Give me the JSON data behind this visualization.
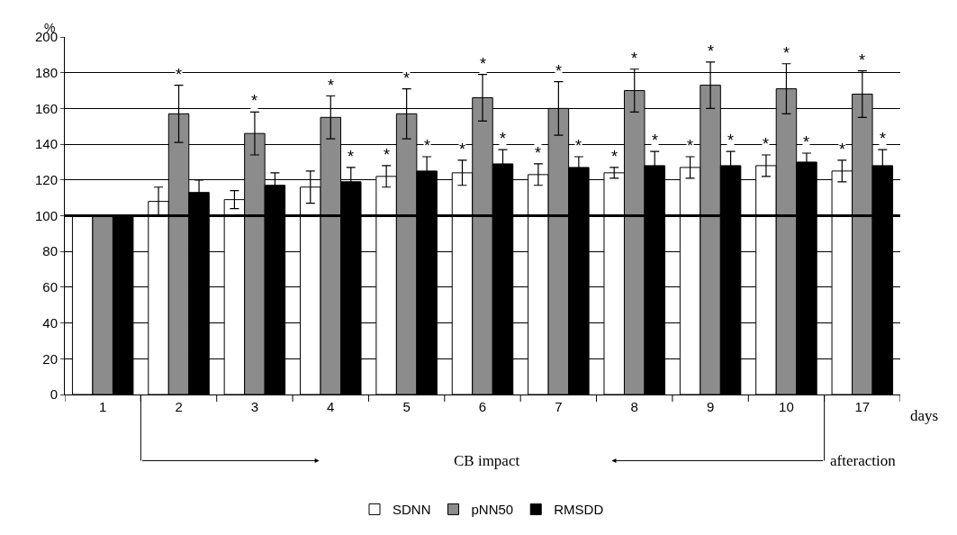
{
  "chart_data": {
    "type": "bar",
    "categories": [
      "1",
      "2",
      "3",
      "4",
      "5",
      "6",
      "7",
      "8",
      "9",
      "10",
      "17"
    ],
    "series": [
      {
        "name": "SDNN",
        "color": "#ffffff",
        "values": [
          100,
          108,
          109,
          116,
          122,
          124,
          123,
          124,
          127,
          128,
          125
        ],
        "errors": [
          null,
          8,
          5,
          9,
          6,
          7,
          6,
          3,
          6,
          6,
          6
        ],
        "value_labels": [
          null,
          null,
          null,
          null,
          "*",
          "*",
          "*",
          "*",
          "*",
          "*",
          "*"
        ]
      },
      {
        "name": "pNN50",
        "color": "#8c8c8c",
        "values": [
          100,
          157,
          146,
          155,
          157,
          166,
          160,
          170,
          173,
          171,
          168
        ],
        "errors": [
          null,
          16,
          12,
          12,
          14,
          13,
          15,
          12,
          13,
          14,
          13
        ],
        "value_labels": [
          null,
          "*",
          "*",
          "*",
          "*",
          "*",
          "*",
          "*",
          "*",
          "*",
          "*"
        ]
      },
      {
        "name": "RMSDD",
        "color": "#000000",
        "values": [
          100,
          113,
          117,
          119,
          125,
          129,
          127,
          128,
          128,
          130,
          128
        ],
        "errors": [
          null,
          7,
          7,
          8,
          8,
          8,
          6,
          8,
          8,
          5,
          9
        ],
        "value_labels": [
          null,
          null,
          null,
          "*",
          "*",
          "*",
          "*",
          "*",
          "*",
          "*",
          "*"
        ]
      }
    ],
    "xlabel": "days",
    "ylabel": "%",
    "ylim": [
      0,
      200
    ],
    "yticks": [
      0,
      20,
      40,
      60,
      80,
      100,
      120,
      140,
      160,
      180,
      200
    ],
    "grid": "y",
    "legend": "bottom",
    "ref_lines": [
      {
        "axis": "y",
        "value": 100,
        "color": "#000000"
      }
    ],
    "annotations": [
      "CB impact",
      "afteraction"
    ]
  }
}
